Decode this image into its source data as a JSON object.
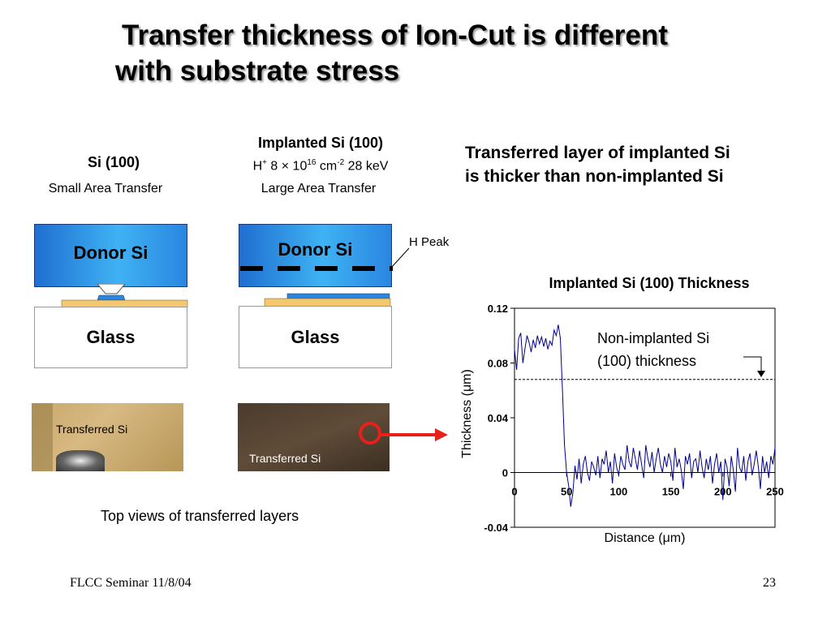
{
  "slide": {
    "title_line1": "Transfer thickness of Ion-Cut is different",
    "title_line2": "with substrate stress",
    "left": {
      "heading": "Si (100)",
      "caption": "Small Area Transfer"
    },
    "right": {
      "heading": "Implanted Si (100)",
      "implant_prefix": "H",
      "implant_sup": "+",
      "implant_mid": " 8 × 10",
      "implant_exp": "16",
      "implant_unit": " cm",
      "implant_unit_exp": "-2",
      "implant_energy": " 28 keV",
      "caption": "Large Area Transfer"
    },
    "donor_label": "Donor Si",
    "glass_label": "Glass",
    "h_peak_label": "H Peak",
    "photo_label": "Transferred Si",
    "top_views_caption": "Top views of transferred layers",
    "statement_line1": "Transferred layer  of implanted Si",
    "statement_line2": "is thicker than non-implanted Si",
    "footer_left": "FLCC Seminar 11/8/04",
    "footer_right": "23",
    "colors": {
      "arrow": "#e8201c",
      "donor_blue": "#2f9be8",
      "bond_orange": "#f5c870",
      "line": "#00008b"
    }
  },
  "chart_data": {
    "type": "line",
    "title": "Implanted Si (100) Thickness",
    "xlabel": "Distance (μm)",
    "ylabel": "Thickness (μm)",
    "xlim": [
      0,
      250
    ],
    "ylim": [
      -0.04,
      0.12
    ],
    "xticks": [
      "0",
      "50",
      "100",
      "150",
      "200",
      "250"
    ],
    "yticks": [
      "0.12",
      "0.08",
      "0.04",
      "0",
      "-0.04"
    ],
    "reference_value": 0.068,
    "annotation_line1": "Non-implanted Si",
    "annotation_line2": "(100) thickness",
    "series": [
      {
        "x": [
          0,
          2,
          4,
          6,
          8,
          10,
          12,
          14,
          16,
          18,
          20,
          22,
          24,
          26,
          28,
          30,
          32,
          34,
          36,
          38,
          40,
          42,
          44,
          46,
          48,
          50,
          52,
          54,
          56,
          58,
          60,
          62,
          64,
          66,
          68,
          70,
          72,
          74,
          76,
          78,
          80,
          82,
          84,
          86,
          88,
          90,
          92,
          94,
          96,
          98,
          100,
          102,
          104,
          106,
          108,
          110,
          112,
          114,
          116,
          118,
          120,
          122,
          124,
          126,
          128,
          130,
          132,
          134,
          136,
          138,
          140,
          142,
          144,
          146,
          148,
          150,
          152,
          154,
          156,
          158,
          160,
          162,
          164,
          166,
          168,
          170,
          172,
          174,
          176,
          178,
          180,
          182,
          184,
          186,
          188,
          190,
          192,
          194,
          196,
          198,
          200,
          202,
          204,
          206,
          208,
          210,
          212,
          214,
          216,
          218,
          220,
          222,
          224,
          226,
          228,
          230,
          232,
          234,
          236,
          238,
          240,
          242,
          244,
          246,
          248,
          250
        ],
        "y": [
          0.09,
          0.075,
          0.098,
          0.102,
          0.08,
          0.09,
          0.1,
          0.095,
          0.088,
          0.097,
          0.091,
          0.1,
          0.094,
          0.099,
          0.092,
          0.098,
          0.09,
          0.096,
          0.093,
          0.104,
          0.1,
          0.108,
          0.098,
          0.06,
          0.02,
          0.0,
          -0.01,
          -0.025,
          -0.015,
          0.005,
          -0.005,
          0.01,
          -0.008,
          0.006,
          0.012,
          0.0,
          -0.006,
          0.008,
          0.004,
          -0.002,
          0.012,
          -0.004,
          0.01,
          0.006,
          0.016,
          0.0,
          0.008,
          -0.008,
          0.014,
          0.004,
          -0.002,
          0.012,
          0.006,
          0.002,
          0.02,
          0.008,
          0.004,
          0.018,
          0.01,
          0.002,
          0.016,
          0.006,
          -0.004,
          0.02,
          0.01,
          0.004,
          0.015,
          0.0,
          0.01,
          0.018,
          0.006,
          0.0,
          0.012,
          0.004,
          0.014,
          0.008,
          -0.006,
          0.018,
          0.004,
          0.01,
          0.002,
          -0.012,
          0.012,
          0.006,
          0.014,
          -0.004,
          0.008,
          0.01,
          0.0,
          0.016,
          0.004,
          -0.004,
          0.01,
          0.002,
          0.012,
          -0.008,
          0.006,
          0.014,
          0.0,
          0.008,
          -0.02,
          0.01,
          0.004,
          -0.01,
          0.012,
          0.002,
          -0.014,
          0.018,
          0.004,
          0.0,
          0.012,
          -0.006,
          0.008,
          0.014,
          -0.002,
          0.006,
          0.016,
          0.004,
          -0.012,
          0.012,
          0.0,
          0.008,
          -0.004,
          0.012,
          0.006,
          0.018
        ]
      }
    ]
  }
}
